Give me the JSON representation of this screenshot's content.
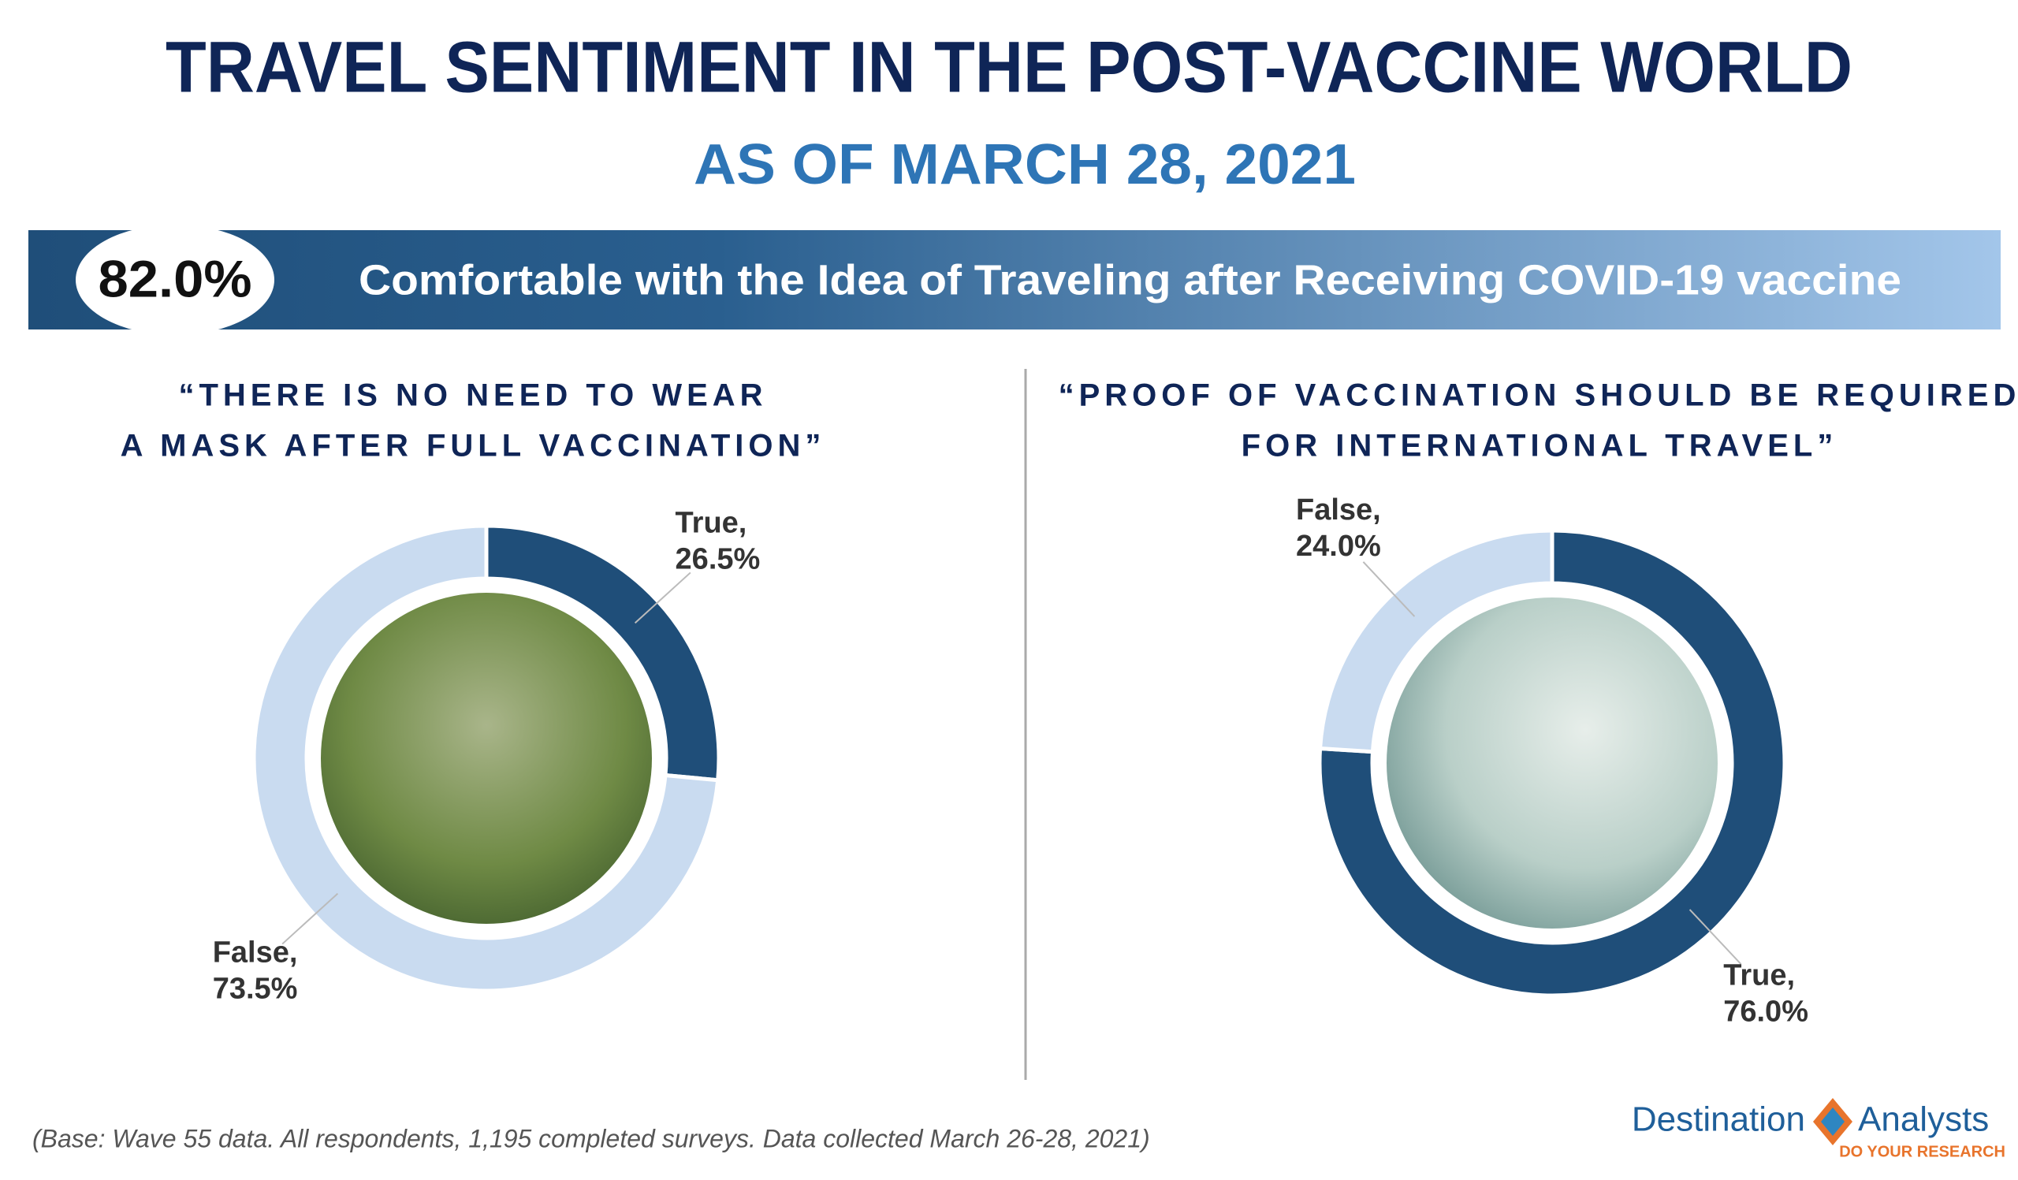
{
  "title": "TRAVEL SENTIMENT IN THE POST-VACCINE WORLD",
  "subtitle": "AS OF MARCH 28, 2021",
  "banner": {
    "figure": "82.0%",
    "text": "Comfortable with the Idea of Traveling after Receiving COVID-19 vaccine"
  },
  "chart_data": [
    {
      "type": "pie",
      "donut": true,
      "title": [
        "“THERE IS NO NEED TO WEAR",
        "A MASK AFTER FULL VACCINATION”"
      ],
      "categories": [
        "True,",
        "False,"
      ],
      "values": [
        26.5,
        73.5
      ],
      "value_labels": [
        "26.5%",
        "73.5%"
      ],
      "colors": [
        "#1f4e79",
        "#c9dbf0"
      ]
    },
    {
      "type": "pie",
      "donut": true,
      "title": [
        "“PROOF OF VACCINATION SHOULD BE REQUIRED",
        "FOR INTERNATIONAL TRAVEL”"
      ],
      "categories": [
        "True,",
        "False,"
      ],
      "values": [
        76.0,
        24.0
      ],
      "value_labels": [
        "76.0%",
        "24.0%"
      ],
      "colors": [
        "#1f4e79",
        "#c9dbf0"
      ]
    }
  ],
  "footnote": "(Base: Wave 55 data. All respondents, 1,195 completed surveys. Data collected March 26-28, 2021)",
  "logo": {
    "left": "Destination",
    "right": "Analysts",
    "tagline": "DO YOUR RESEARCH"
  }
}
